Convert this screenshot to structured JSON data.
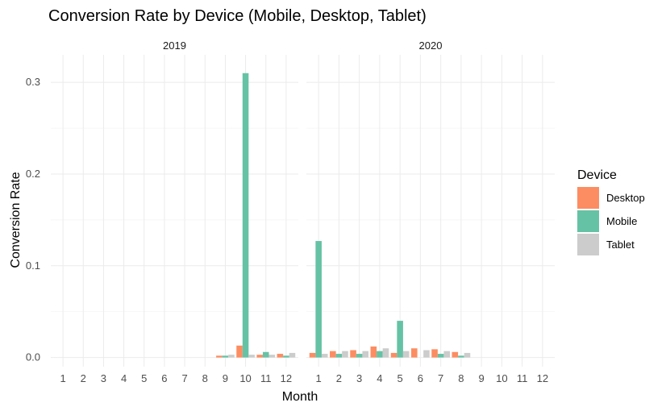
{
  "chart_data": {
    "type": "bar",
    "title": "Conversion Rate by Device (Mobile, Desktop, Tablet)",
    "xlabel": "Month",
    "ylabel": "Conversion Rate",
    "ylim": [
      -0.01,
      0.33
    ],
    "yticks": [
      0.0,
      0.1,
      0.2,
      0.3
    ],
    "ytick_labels": [
      "0.0",
      "0.1",
      "0.2",
      "0.3"
    ],
    "categories": [
      "1",
      "2",
      "3",
      "4",
      "5",
      "6",
      "7",
      "8",
      "9",
      "10",
      "11",
      "12"
    ],
    "grid": true,
    "legend": {
      "title": "Device",
      "position": "right"
    },
    "series": [
      {
        "name": "Desktop",
        "color": "#FC8D62"
      },
      {
        "name": "Mobile",
        "color": "#66C2A5"
      },
      {
        "name": "Tablet",
        "color": "#CCCCCC"
      }
    ],
    "facets": [
      {
        "label": "2019",
        "values": {
          "Desktop": [
            null,
            null,
            null,
            null,
            null,
            null,
            null,
            null,
            0.002,
            0.013,
            0.003,
            0.004
          ],
          "Mobile": [
            null,
            null,
            null,
            null,
            null,
            null,
            null,
            null,
            0.002,
            0.31,
            0.006,
            0.002
          ],
          "Tablet": [
            null,
            null,
            null,
            null,
            null,
            null,
            null,
            null,
            0.003,
            0.003,
            0.003,
            0.005
          ]
        }
      },
      {
        "label": "2020",
        "values": {
          "Desktop": [
            0.005,
            0.007,
            0.008,
            0.012,
            0.005,
            0.01,
            0.009,
            0.006,
            null,
            null,
            null,
            null
          ],
          "Mobile": [
            0.127,
            0.004,
            0.004,
            0.007,
            0.04,
            null,
            0.004,
            0.002,
            null,
            null,
            null,
            null
          ],
          "Tablet": [
            0.004,
            0.007,
            0.007,
            0.01,
            0.007,
            0.008,
            0.007,
            0.005,
            null,
            null,
            null,
            null
          ]
        }
      }
    ]
  }
}
